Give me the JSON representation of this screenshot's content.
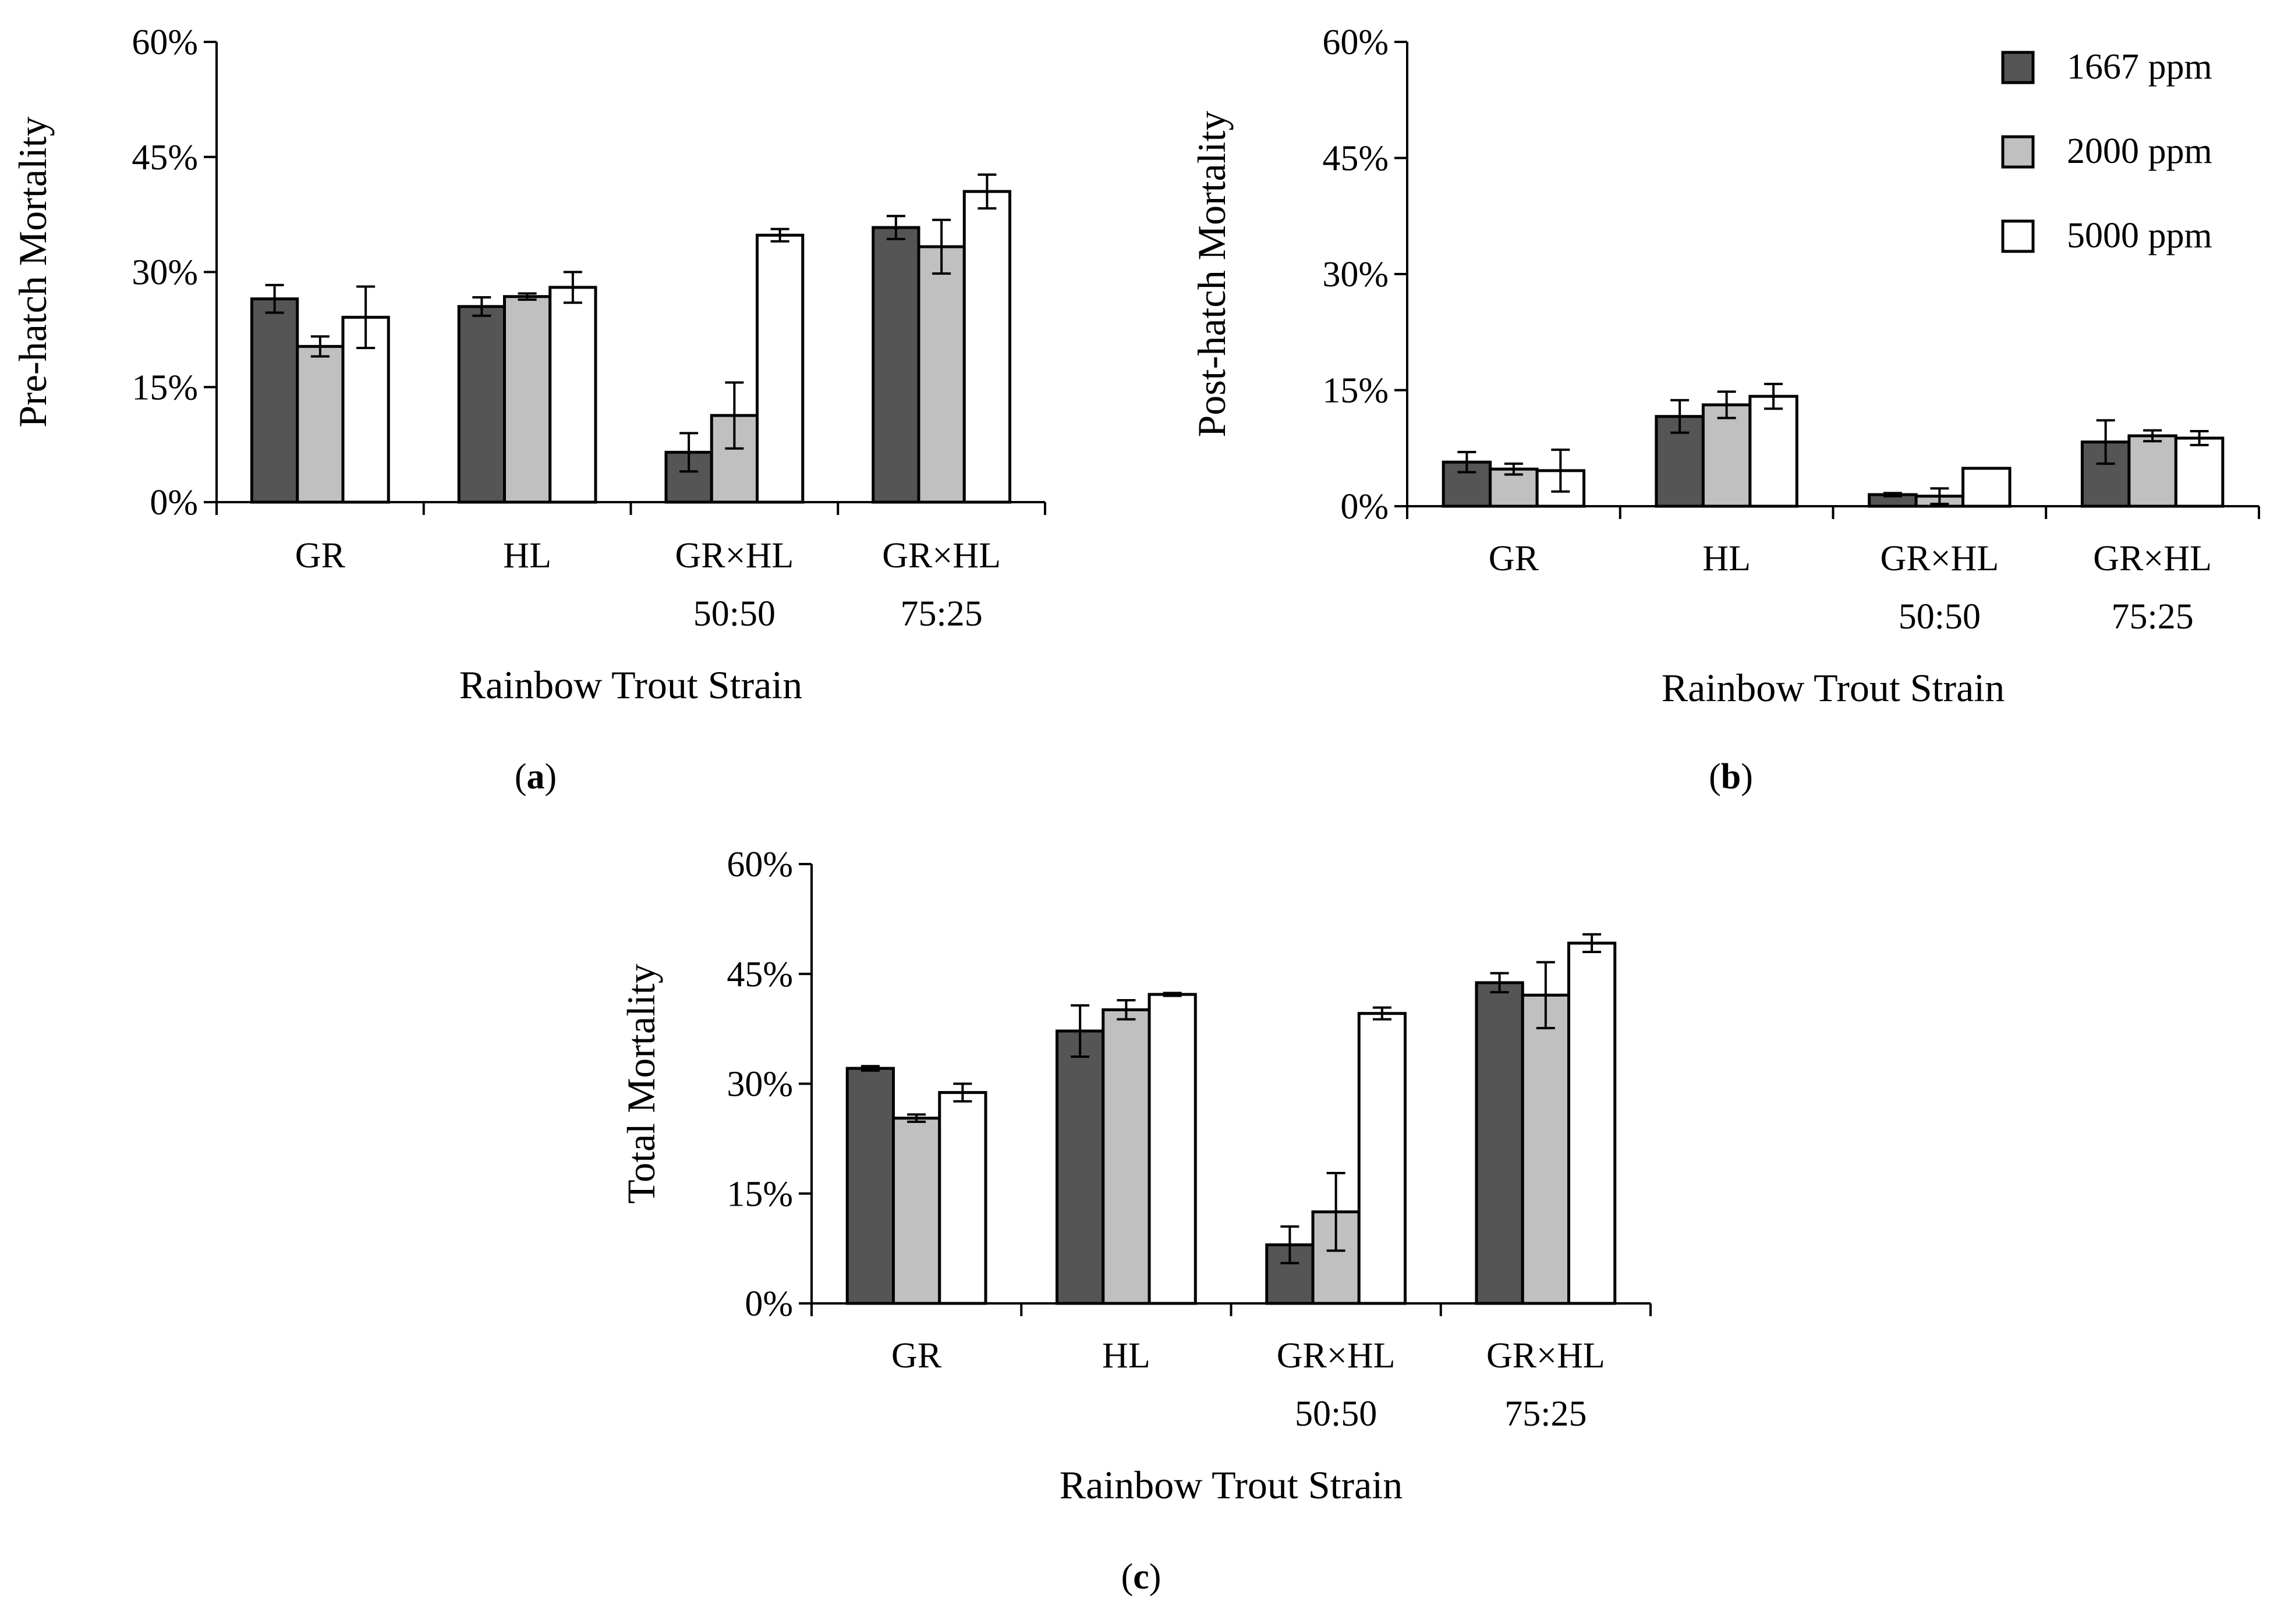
{
  "figure": {
    "legend": [
      {
        "label": "1667 ppm",
        "color": "#555555"
      },
      {
        "label": "2000 ppm",
        "color": "#c0c0c0"
      },
      {
        "label": "5000 ppm",
        "color": "#ffffff"
      }
    ]
  },
  "chart_data": [
    {
      "type": "bar",
      "panel_label": "(a)",
      "ylabel": "Pre-hatch Mortality",
      "xlabel": "Rainbow Trout Strain",
      "ylim": [
        0,
        60
      ],
      "yticks": [
        "0%",
        "15%",
        "30%",
        "45%",
        "60%"
      ],
      "categories": [
        [
          "GR"
        ],
        [
          "HL"
        ],
        [
          "GR×HL",
          "50:50"
        ],
        [
          "GR×HL",
          "75:25"
        ]
      ],
      "series": [
        {
          "name": "1667 ppm",
          "values": [
            26.5,
            25.5,
            6.5,
            35.8
          ],
          "errors": [
            1.8,
            1.2,
            2.5,
            1.5
          ]
        },
        {
          "name": "2000 ppm",
          "values": [
            20.3,
            26.8,
            11.3,
            33.3
          ],
          "errors": [
            1.3,
            0.4,
            4.3,
            3.5
          ]
        },
        {
          "name": "5000 ppm",
          "values": [
            24.1,
            28.0,
            34.8,
            40.5
          ],
          "errors": [
            4.0,
            2.0,
            0.8,
            2.2
          ]
        }
      ],
      "legend": "none"
    },
    {
      "type": "bar",
      "panel_label": "(b)",
      "ylabel": "Post-hatch Mortality",
      "xlabel": "Rainbow Trout Strain",
      "ylim": [
        0,
        60
      ],
      "yticks": [
        "0%",
        "15%",
        "30%",
        "45%",
        "60%"
      ],
      "categories": [
        [
          "GR"
        ],
        [
          "HL"
        ],
        [
          "GR×HL",
          "50:50"
        ],
        [
          "GR×HL",
          "75:25"
        ]
      ],
      "series": [
        {
          "name": "1667 ppm",
          "values": [
            5.7,
            11.6,
            1.5,
            8.3
          ],
          "errors": [
            1.3,
            2.1,
            0.2,
            2.8
          ]
        },
        {
          "name": "2000 ppm",
          "values": [
            4.8,
            13.1,
            1.3,
            9.1
          ],
          "errors": [
            0.7,
            1.7,
            1.0,
            0.7
          ]
        },
        {
          "name": "5000 ppm",
          "values": [
            4.6,
            14.2,
            4.9,
            8.8
          ],
          "errors": [
            2.7,
            1.6,
            0.0,
            0.9
          ]
        }
      ],
      "legend": "top-right"
    },
    {
      "type": "bar",
      "panel_label": "(c)",
      "ylabel": "Total Mortality",
      "xlabel": "Rainbow Trout Strain",
      "ylim": [
        0,
        60
      ],
      "yticks": [
        "0%",
        "15%",
        "30%",
        "45%",
        "60%"
      ],
      "categories": [
        [
          "GR"
        ],
        [
          "HL"
        ],
        [
          "GR×HL",
          "50:50"
        ],
        [
          "GR×HL",
          "75:25"
        ]
      ],
      "series": [
        {
          "name": "1667 ppm",
          "values": [
            32.1,
            37.2,
            8.0,
            43.8
          ],
          "errors": [
            0.3,
            3.5,
            2.5,
            1.3
          ]
        },
        {
          "name": "2000 ppm",
          "values": [
            25.3,
            40.1,
            12.5,
            42.1
          ],
          "errors": [
            0.5,
            1.3,
            5.3,
            4.5
          ]
        },
        {
          "name": "5000 ppm",
          "values": [
            28.8,
            42.2,
            39.6,
            49.2
          ],
          "errors": [
            1.2,
            0.2,
            0.8,
            1.2
          ]
        }
      ],
      "legend": "none"
    }
  ]
}
